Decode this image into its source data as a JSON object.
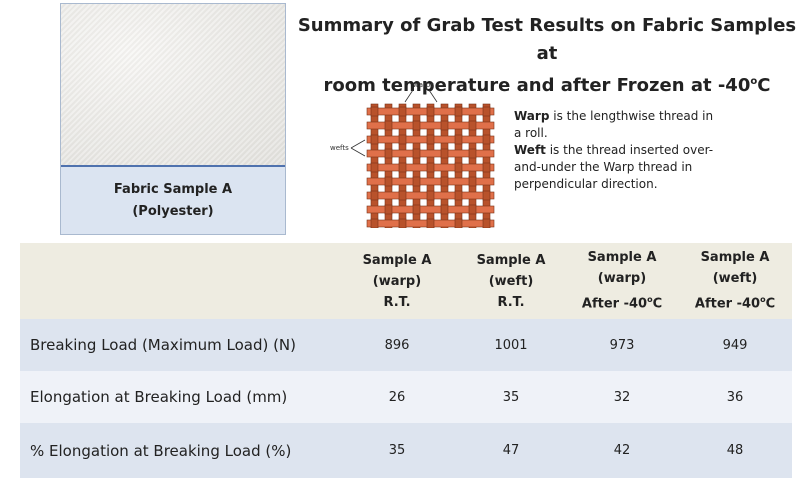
{
  "title": {
    "line1": "Summary of Grab Test Results on Fabric Samples at",
    "line2_prefix": "room temperature and after Frozen at -40",
    "line2_degree": "o",
    "line2_suffix": "C"
  },
  "sample": {
    "name": "Fabric Sample A",
    "material": "(Polyester)"
  },
  "diagram": {
    "warps_label": "warps",
    "wefts_label": "wefts",
    "colors": {
      "warp": "#b8522b",
      "weft": "#e0704a"
    }
  },
  "definitions": {
    "warp_term": "Warp",
    "warp_text": " is the lengthwise thread in a roll.",
    "weft_term": "Weft",
    "weft_text": " is the thread inserted over-and-under the Warp thread in perpendicular direction."
  },
  "table": {
    "columns": [
      {
        "l1": "Sample A",
        "l2": "(warp)",
        "l3": "R.T.",
        "l3_degree": ""
      },
      {
        "l1": "Sample A",
        "l2": "(weft)",
        "l3": "R.T.",
        "l3_degree": ""
      },
      {
        "l1": "Sample A",
        "l2": "(warp)",
        "l3": "After -40",
        "l3_degree": "o",
        "l3_suffix": "C"
      },
      {
        "l1": "Sample A",
        "l2": "(weft)",
        "l3": "After -40",
        "l3_degree": "o",
        "l3_suffix": "C"
      }
    ],
    "rows": [
      {
        "label": "Breaking Load (Maximum Load) (N)",
        "values": [
          "896",
          "1001",
          "973",
          "949"
        ]
      },
      {
        "label": "Elongation at Breaking Load (mm)",
        "values": [
          "26",
          "35",
          "32",
          "36"
        ]
      },
      {
        "label": "% Elongation at Breaking Load (%)",
        "values": [
          "35",
          "47",
          "42",
          "48"
        ]
      }
    ]
  },
  "colors": {
    "header_bg": "#eeece1",
    "row_dark": "#dde4ef",
    "row_light": "#eff2f8",
    "caption_bg": "#dbe4f1",
    "border_blue": "#4f72ae"
  }
}
